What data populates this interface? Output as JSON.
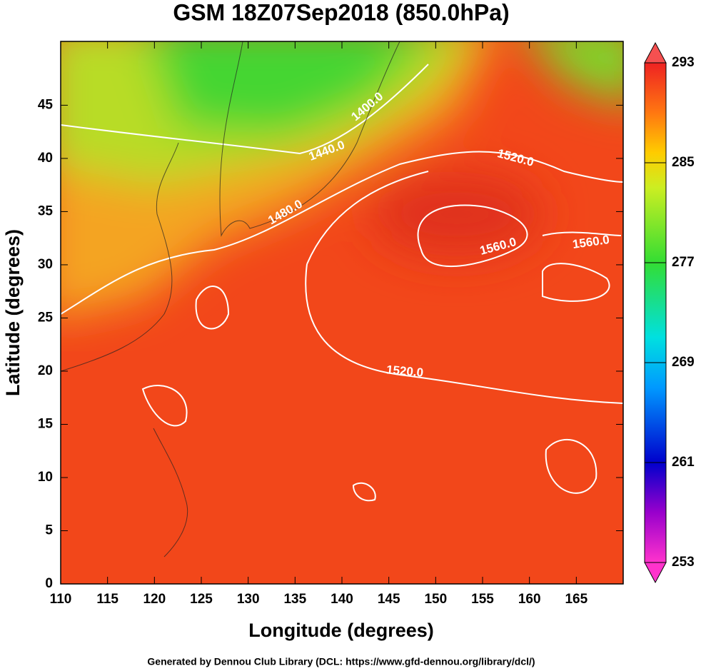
{
  "title": "GSM 18Z07Sep2018 (850.0hPa)",
  "x_axis": {
    "label": "Longitude (degrees)",
    "lim": [
      110,
      170
    ],
    "ticks": [
      110,
      115,
      120,
      125,
      130,
      135,
      140,
      145,
      150,
      155,
      160,
      165
    ]
  },
  "y_axis": {
    "label": "Latitude  (degrees)",
    "lim": [
      0,
      51
    ],
    "ticks": [
      0,
      5,
      10,
      15,
      20,
      25,
      30,
      35,
      40,
      45
    ]
  },
  "colorbar": {
    "lim": [
      253,
      293
    ],
    "ticks": [
      253,
      261,
      269,
      277,
      285,
      293
    ]
  },
  "contour_labels": [
    "1400.0",
    "1440.0",
    "1480.0",
    "1520.0",
    "1560.0",
    "1560.0",
    "1520.0"
  ],
  "footer": "Generated by Dennou Club Library (DCL: https://www.gfd-dennou.org/library/dcl/)"
}
